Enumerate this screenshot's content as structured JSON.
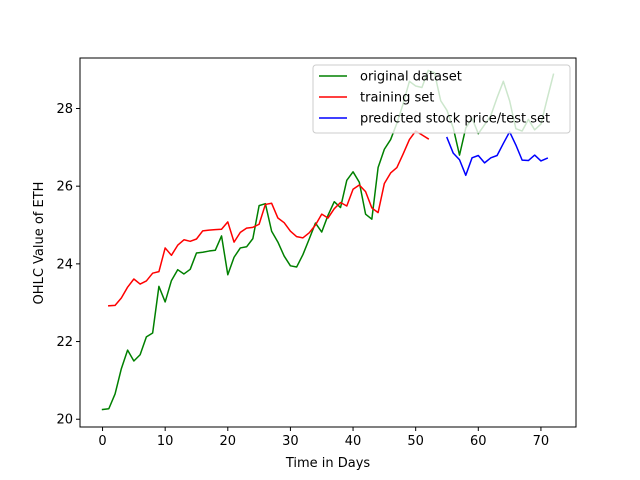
{
  "chart_data": {
    "type": "line",
    "title": "",
    "xlabel": "Time in Days",
    "ylabel": "OHLC Value of  ETH",
    "xlim": [
      -3.6,
      75.6
    ],
    "ylim": [
      19.8,
      29.3
    ],
    "xticks": [
      0,
      10,
      20,
      30,
      40,
      50,
      60,
      70
    ],
    "yticks": [
      20,
      22,
      24,
      26,
      28
    ],
    "grid": false,
    "legend_position": "top-right",
    "series": [
      {
        "name": "original dataset",
        "color": "#008000",
        "x": [
          0,
          1,
          2,
          3,
          4,
          5,
          6,
          7,
          8,
          9,
          10,
          11,
          12,
          13,
          14,
          15,
          16,
          17,
          18,
          19,
          20,
          21,
          22,
          23,
          24,
          25,
          26,
          27,
          28,
          29,
          30,
          31,
          32,
          33,
          34,
          35,
          36,
          37,
          38,
          39,
          40,
          41,
          42,
          43,
          44,
          45,
          46,
          47,
          48,
          49,
          50,
          51,
          52,
          53,
          54,
          55,
          56,
          57,
          58,
          59,
          60,
          61,
          62,
          63,
          64,
          65,
          66,
          67,
          68,
          69,
          70,
          71,
          72
        ],
        "y": [
          20.25,
          20.27,
          20.65,
          21.3,
          21.78,
          21.5,
          21.66,
          22.12,
          22.22,
          23.42,
          23.02,
          23.57,
          23.85,
          23.74,
          23.86,
          24.28,
          24.3,
          24.33,
          24.35,
          24.72,
          23.72,
          24.17,
          24.41,
          24.44,
          24.65,
          25.5,
          25.55,
          24.84,
          24.56,
          24.2,
          23.95,
          23.92,
          24.24,
          24.64,
          25.05,
          24.82,
          25.25,
          25.6,
          25.45,
          26.15,
          26.37,
          26.1,
          25.28,
          25.15,
          26.48,
          26.95,
          27.2,
          27.62,
          28.12,
          28.7,
          28.58,
          28.54,
          28.98,
          28.92,
          28.2,
          27.95,
          27.5,
          26.8,
          27.5,
          27.75,
          27.35,
          27.58,
          27.82,
          28.28,
          28.7,
          28.2,
          27.48,
          27.42,
          27.72,
          27.45,
          27.6,
          28.25,
          28.88
        ]
      },
      {
        "name": "training set",
        "color": "#ff0000",
        "x": [
          1,
          2,
          3,
          4,
          5,
          6,
          7,
          8,
          9,
          10,
          11,
          12,
          13,
          14,
          15,
          16,
          17,
          18,
          19,
          20,
          21,
          22,
          23,
          24,
          25,
          26,
          27,
          28,
          29,
          30,
          31,
          32,
          33,
          34,
          35,
          36,
          37,
          38,
          39,
          40,
          41,
          42,
          43,
          44,
          45,
          46,
          47,
          48,
          49,
          50,
          51,
          52
        ],
        "y": [
          22.92,
          22.93,
          23.12,
          23.4,
          23.61,
          23.48,
          23.56,
          23.76,
          23.8,
          24.41,
          24.22,
          24.48,
          24.62,
          24.58,
          24.64,
          24.85,
          24.87,
          24.88,
          24.89,
          25.08,
          24.56,
          24.81,
          24.92,
          24.94,
          25.02,
          25.53,
          25.56,
          25.18,
          25.06,
          24.84,
          24.7,
          24.67,
          24.8,
          25.0,
          25.28,
          25.18,
          25.42,
          25.58,
          25.49,
          25.92,
          26.03,
          25.86,
          25.44,
          25.32,
          26.07,
          26.34,
          26.48,
          26.83,
          27.2,
          27.42,
          27.32,
          27.22
        ]
      },
      {
        "name": "predicted stock price/test set",
        "color": "#0000ff",
        "x": [
          55,
          56,
          57,
          58,
          59,
          60,
          61,
          62,
          63,
          64,
          65,
          66,
          67,
          68,
          69,
          70,
          71
        ],
        "y": [
          27.25,
          26.85,
          26.68,
          26.28,
          26.73,
          26.79,
          26.6,
          26.73,
          26.79,
          27.1,
          27.4,
          27.06,
          26.67,
          26.66,
          26.8,
          26.65,
          26.72
        ]
      }
    ]
  }
}
